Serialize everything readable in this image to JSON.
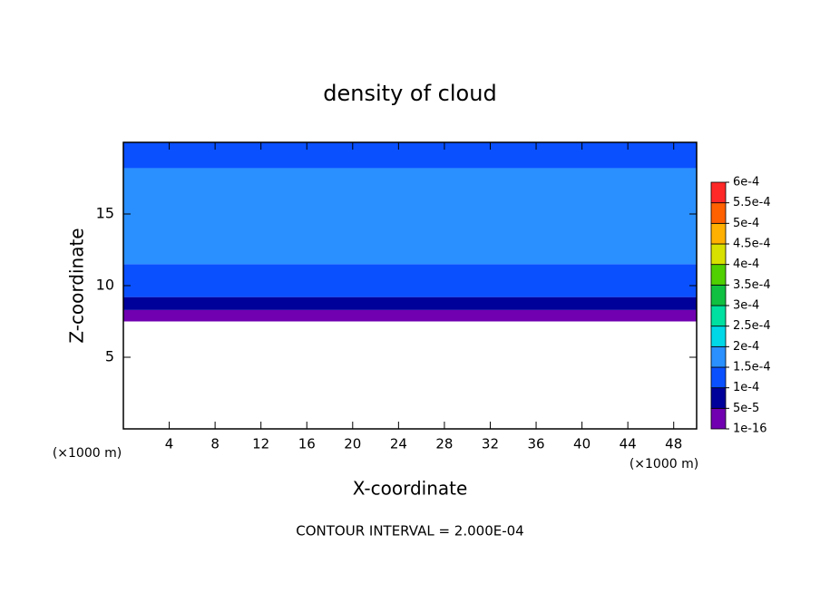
{
  "chart_data": {
    "type": "contour",
    "title": "density of cloud",
    "xlabel": "X-coordinate",
    "ylabel": "Z-coordinate",
    "x_unit": "(×1000 m)",
    "y_unit": "(×1000 m)",
    "footer": "CONTOUR INTERVAL = 2.000E-04",
    "xlim": [
      0,
      50
    ],
    "ylim": [
      0,
      20
    ],
    "xticks": [
      4,
      8,
      12,
      16,
      20,
      24,
      28,
      32,
      36,
      40,
      44,
      48
    ],
    "yticks": [
      5,
      10,
      15
    ],
    "field": [
      {
        "z": [
          7.5,
          8.3
        ],
        "level": 1e-16
      },
      {
        "z": [
          8.3,
          9.2
        ],
        "level": 5e-05
      },
      {
        "z": [
          9.2,
          11.5
        ],
        "level": 0.0001
      },
      {
        "z": [
          11.5,
          18.2
        ],
        "level": 0.00015
      },
      {
        "z": [
          18.2,
          20
        ],
        "level": 0.0001
      }
    ],
    "colorbar": {
      "levels": [
        {
          "value": 1e-16,
          "label": "1e-16"
        },
        {
          "value": 5e-05,
          "label": "5e-5"
        },
        {
          "value": 0.0001,
          "label": "1e-4"
        },
        {
          "value": 0.00015,
          "label": "1.5e-4"
        },
        {
          "value": 0.0002,
          "label": "2e-4"
        },
        {
          "value": 0.00025,
          "label": "2.5e-4"
        },
        {
          "value": 0.0003,
          "label": "3e-4"
        },
        {
          "value": 0.00035,
          "label": "3.5e-4"
        },
        {
          "value": 0.0004,
          "label": "4e-4"
        },
        {
          "value": 0.00045,
          "label": "4.5e-4"
        },
        {
          "value": 0.0005,
          "label": "5e-4"
        },
        {
          "value": 0.00055,
          "label": "5.5e-4"
        },
        {
          "value": 0.0006,
          "label": "6e-4"
        }
      ],
      "colors": [
        "#7000b0",
        "#00009a",
        "#0a50ff",
        "#2a90ff",
        "#00d8e8",
        "#00e0a0",
        "#10c040",
        "#50d000",
        "#d8e000",
        "#ffb000",
        "#ff6000",
        "#ff2828",
        "#ff9090"
      ]
    }
  }
}
